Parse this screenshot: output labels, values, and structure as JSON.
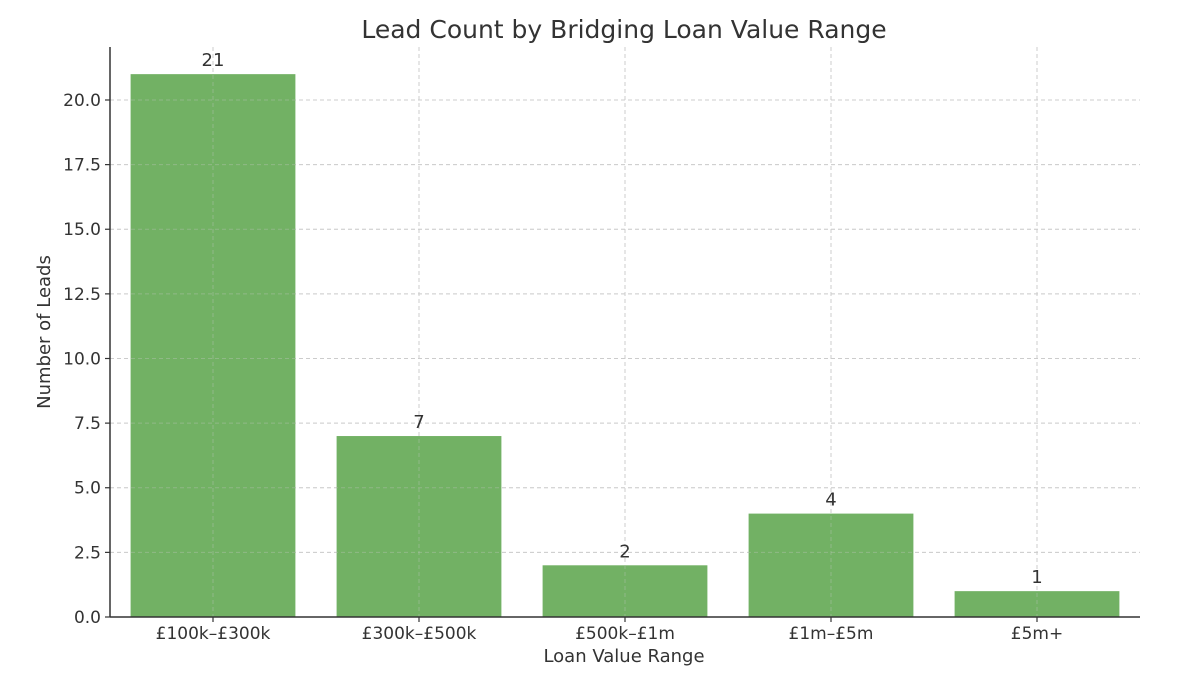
{
  "chart_data": {
    "type": "bar",
    "title": "Lead Count by Bridging Loan Value Range",
    "xlabel": "Loan Value Range",
    "ylabel": "Number of Leads",
    "categories": [
      "£100k–£300k",
      "£300k–£500k",
      "£500k–£1m",
      "£1m–£5m",
      "£5m+"
    ],
    "values": [
      21,
      7,
      2,
      4,
      1
    ],
    "data_labels": [
      "21",
      "7",
      "2",
      "4",
      "1"
    ],
    "ylim": [
      0,
      22.05
    ],
    "yticks": [
      0,
      2.5,
      5,
      7.5,
      10,
      12.5,
      15,
      17.5,
      20
    ],
    "ytick_labels": [
      "0.0",
      "2.5",
      "5.0",
      "7.5",
      "10.0",
      "12.5",
      "15.0",
      "17.5",
      "20.0"
    ],
    "grid": true,
    "bar_color": "#6aad5c"
  }
}
